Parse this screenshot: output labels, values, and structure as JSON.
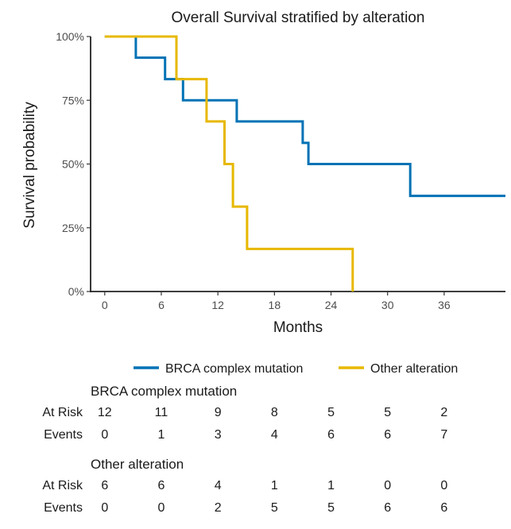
{
  "chart_data": {
    "type": "line",
    "step": true,
    "title": "Overall Survival stratified by alteration",
    "xlabel": "Months",
    "ylabel": "Survival probability",
    "xlim": [
      -1.5,
      42.5
    ],
    "ylim": [
      0,
      1
    ],
    "x_ticks": [
      0,
      6,
      12,
      18,
      24,
      30,
      36
    ],
    "y_ticks": [
      {
        "value": 0,
        "label": "0%"
      },
      {
        "value": 0.25,
        "label": "25%"
      },
      {
        "value": 0.5,
        "label": "50%"
      },
      {
        "value": 0.75,
        "label": "75%"
      },
      {
        "value": 1,
        "label": "100%"
      }
    ],
    "grid": false,
    "legend_position": "bottom",
    "series": [
      {
        "name": "BRCA complex mutation",
        "color": "#0072B5",
        "x": [
          0,
          3.3,
          6.4,
          8.3,
          14,
          21,
          21.6,
          32.4,
          42.5
        ],
        "y": [
          1,
          0.917,
          0.833,
          0.75,
          0.667,
          0.583,
          0.5,
          0.375,
          0.375
        ]
      },
      {
        "name": "Other alteration",
        "color": "#E7B800",
        "x": [
          0,
          7.6,
          10.8,
          12.7,
          13.6,
          15.1,
          26.3
        ],
        "y": [
          1,
          0.833,
          0.667,
          0.5,
          0.333,
          0.167,
          0
        ]
      }
    ]
  },
  "risk_table": {
    "times": [
      0,
      6,
      12,
      18,
      24,
      30,
      36
    ],
    "row_labels": {
      "at_risk": "At Risk",
      "events": "Events"
    },
    "groups": [
      {
        "title": "BRCA complex mutation",
        "at_risk": [
          12,
          11,
          9,
          8,
          5,
          5,
          2
        ],
        "events": [
          0,
          1,
          3,
          4,
          6,
          6,
          7
        ]
      },
      {
        "title": "Other alteration",
        "at_risk": [
          6,
          6,
          4,
          1,
          1,
          0,
          0
        ],
        "events": [
          0,
          0,
          2,
          5,
          5,
          6,
          6
        ]
      }
    ]
  }
}
